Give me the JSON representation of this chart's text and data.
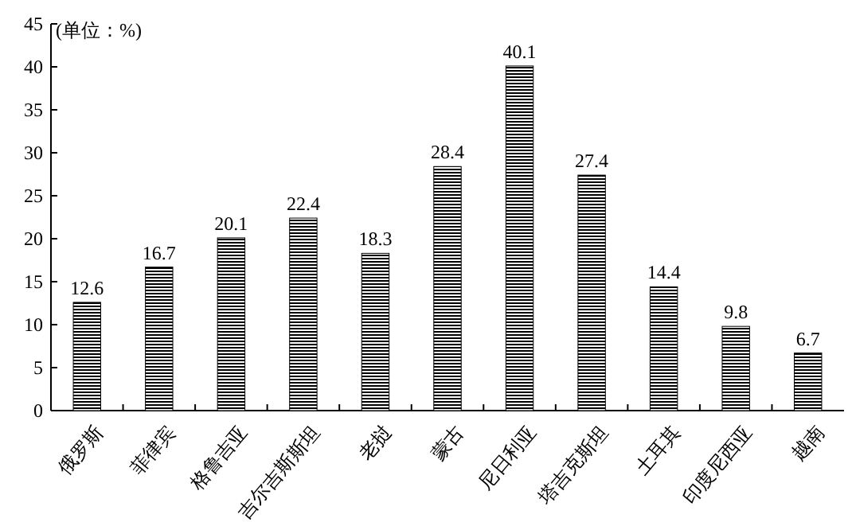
{
  "chart_data": {
    "type": "bar",
    "ylabel": "(单位：%)",
    "categories": [
      "俄罗斯",
      "菲律宾",
      "格鲁吉亚",
      "吉尔吉斯斯坦",
      "老挝",
      "蒙古",
      "尼日利亚",
      "塔吉克斯坦",
      "土耳其",
      "印度尼西亚",
      "越南"
    ],
    "values": [
      12.6,
      16.7,
      20.1,
      22.4,
      18.3,
      28.4,
      40.1,
      27.4,
      14.4,
      9.8,
      6.7
    ],
    "color": "#000000",
    "ylim": [
      0,
      45
    ],
    "yticks": [
      0,
      5,
      10,
      15,
      20,
      25,
      30,
      35,
      40,
      45
    ],
    "data_labels": true,
    "grid": false
  }
}
